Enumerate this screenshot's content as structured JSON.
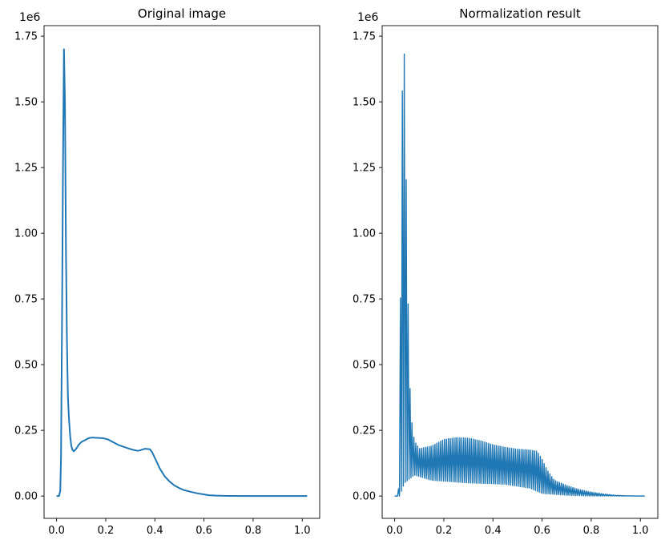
{
  "chart_data": [
    {
      "type": "line",
      "title": "Original image",
      "xlabel": "",
      "ylabel": "",
      "offset_label": "1e6",
      "xlim": [
        -0.051,
        1.071
      ],
      "ylim": [
        -85000,
        1790000
      ],
      "xticks": [
        0.0,
        0.2,
        0.4,
        0.6,
        0.8,
        1.0
      ],
      "xtick_labels": [
        "0.0",
        "0.2",
        "0.4",
        "0.6",
        "0.8",
        "1.0"
      ],
      "yticks": [
        0,
        250000,
        500000,
        750000,
        1000000,
        1250000,
        1500000,
        1750000
      ],
      "ytick_labels": [
        "0.00",
        "0.25",
        "0.50",
        "0.75",
        "1.00",
        "1.25",
        "1.50",
        "1.75"
      ],
      "color": "#1f77b4",
      "grid": false,
      "series": [
        {
          "x": [
            0.0,
            0.01,
            0.015,
            0.018,
            0.022,
            0.026,
            0.03,
            0.034,
            0.038,
            0.042,
            0.046,
            0.05,
            0.055,
            0.06,
            0.065,
            0.07,
            0.075,
            0.08,
            0.09,
            0.1,
            0.11,
            0.12,
            0.13,
            0.14,
            0.15,
            0.17,
            0.19,
            0.21,
            0.23,
            0.25,
            0.27,
            0.29,
            0.31,
            0.33,
            0.34,
            0.36,
            0.38,
            0.39,
            0.4,
            0.42,
            0.44,
            0.46,
            0.48,
            0.5,
            0.52,
            0.55,
            0.58,
            0.6,
            0.62,
            0.65,
            0.7,
            0.8,
            0.9,
            1.0,
            1.02
          ],
          "y": [
            0,
            0,
            20000,
            150000,
            650000,
            1250000,
            1700000,
            1500000,
            950000,
            600000,
            380000,
            300000,
            230000,
            190000,
            175000,
            170000,
            175000,
            180000,
            195000,
            205000,
            210000,
            215000,
            220000,
            222000,
            222000,
            221000,
            220000,
            215000,
            205000,
            195000,
            188000,
            182000,
            176000,
            172000,
            174000,
            180000,
            178000,
            165000,
            145000,
            105000,
            75000,
            55000,
            40000,
            30000,
            22000,
            15000,
            9000,
            6000,
            3000,
            1500,
            500,
            100,
            50,
            0,
            0
          ]
        }
      ]
    },
    {
      "type": "line",
      "title": "Normalization result",
      "xlabel": "",
      "ylabel": "",
      "offset_label": "1e6",
      "xlim": [
        -0.051,
        1.071
      ],
      "ylim": [
        -85000,
        1790000
      ],
      "xticks": [
        0.0,
        0.2,
        0.4,
        0.6,
        0.8,
        1.0
      ],
      "xtick_labels": [
        "0.0",
        "0.2",
        "0.4",
        "0.6",
        "0.8",
        "1.0"
      ],
      "yticks": [
        0,
        250000,
        500000,
        750000,
        1000000,
        1250000,
        1500000,
        1750000
      ],
      "ytick_labels": [
        "0.00",
        "0.25",
        "0.50",
        "0.75",
        "1.00",
        "1.25",
        "1.50",
        "1.75"
      ],
      "color": "#1f77b4",
      "grid": false,
      "oscillation_period": 0.0078,
      "envelope": {
        "x": [
          0.0,
          0.015,
          0.02,
          0.025,
          0.03,
          0.04,
          0.05,
          0.06,
          0.07,
          0.08,
          0.1,
          0.15,
          0.2,
          0.25,
          0.3,
          0.35,
          0.4,
          0.45,
          0.5,
          0.55,
          0.58,
          0.6,
          0.62,
          0.65,
          0.7,
          0.75,
          0.8,
          0.85,
          0.9,
          0.95,
          1.0,
          1.02
        ],
        "y": [
          0,
          0,
          230000,
          1000000,
          1520000,
          1700000,
          970000,
          450000,
          280000,
          210000,
          180000,
          190000,
          215000,
          222000,
          220000,
          210000,
          195000,
          185000,
          178000,
          175000,
          170000,
          140000,
          100000,
          60000,
          40000,
          25000,
          15000,
          8000,
          3000,
          1000,
          0,
          0
        ]
      },
      "trough": {
        "x": [
          0.0,
          0.02,
          0.04,
          0.08,
          0.15,
          0.3,
          0.45,
          0.55,
          0.6,
          0.7,
          0.8,
          1.02
        ],
        "y": [
          0,
          0,
          50000,
          80000,
          60000,
          50000,
          45000,
          30000,
          10000,
          3000,
          0,
          0
        ]
      }
    }
  ]
}
